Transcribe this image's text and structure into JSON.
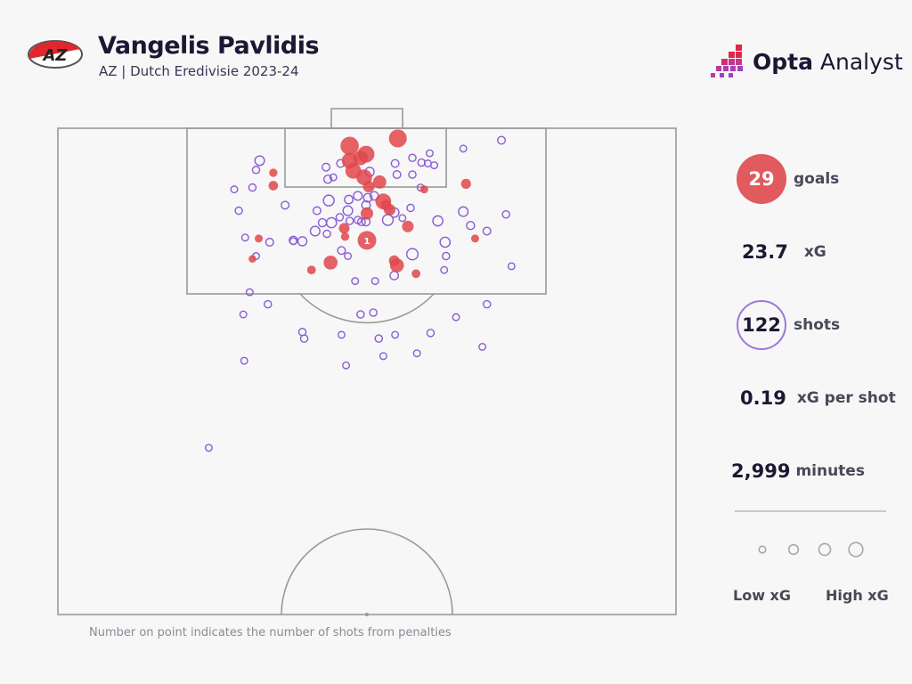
{
  "header": {
    "title": "Vangelis Pavlidis",
    "subtitle": "AZ | Dutch Eredivisie 2023-24",
    "club_logo_text": "AZ",
    "brand_bold": "Opta",
    "brand_light": " Analyst"
  },
  "stats": {
    "goals": "29",
    "goals_label": "goals",
    "xg": "23.7",
    "xg_label": "xG",
    "shots": "122",
    "shots_label": "shots",
    "xg_per_shot": "0.19",
    "xg_per_shot_label": "xG per shot",
    "minutes": "2,999",
    "minutes_label": "minutes"
  },
  "legend": {
    "low": "Low xG",
    "high": "High xG",
    "sizes_xg": [
      0.02,
      0.1,
      0.2,
      0.35
    ]
  },
  "footnote": "Number on point indicates the number of shots from penalties",
  "colors": {
    "goal": "#e0474c",
    "miss": "#8a5cd6",
    "pitch_line": "#9a9a9a",
    "text": "#1d1733"
  },
  "chart_data": {
    "type": "scatter",
    "title": "Vangelis Pavlidis shot map",
    "x_unit": "metres across pitch width (0-68)",
    "y_unit": "metres from goal line (0-52.5)",
    "xlim": [
      0,
      68
    ],
    "ylim": [
      0,
      52.5
    ],
    "fields": [
      "x",
      "y",
      "xg",
      "goal",
      "penalties"
    ],
    "goals": [
      [
        32.1,
        1.9,
        0.75
      ],
      [
        37.4,
        1.1,
        0.7
      ],
      [
        33.9,
        2.8,
        0.6
      ],
      [
        32.1,
        3.5,
        0.5
      ],
      [
        33.3,
        3.2,
        0.4
      ],
      [
        32.5,
        4.6,
        0.5
      ],
      [
        33.7,
        5.3,
        0.5
      ],
      [
        35.4,
        5.8,
        0.3
      ],
      [
        34.2,
        6.3,
        0.2
      ],
      [
        23.7,
        4.8,
        0.06
      ],
      [
        23.7,
        6.2,
        0.1
      ],
      [
        44.9,
        6.0,
        0.12
      ],
      [
        40.3,
        6.6,
        0.05
      ],
      [
        35.8,
        7.9,
        0.5
      ],
      [
        36.5,
        8.8,
        0.2
      ],
      [
        36.1,
        8.3,
        0.15
      ],
      [
        34.0,
        9.2,
        0.25
      ],
      [
        38.5,
        10.6,
        0.2
      ],
      [
        31.5,
        10.8,
        0.15
      ],
      [
        31.6,
        11.7,
        0.06
      ],
      [
        34.0,
        12.1,
        0.79,
        1
      ],
      [
        22.1,
        11.9,
        0.05
      ],
      [
        45.9,
        11.9,
        0.05
      ],
      [
        21.4,
        14.1,
        0.04
      ],
      [
        30.0,
        14.5,
        0.35
      ],
      [
        37.0,
        14.3,
        0.15
      ],
      [
        37.3,
        14.8,
        0.35
      ],
      [
        27.9,
        15.3,
        0.07
      ],
      [
        39.4,
        15.7,
        0.07
      ]
    ],
    "misses": [
      [
        22.2,
        3.5,
        0.1
      ],
      [
        21.8,
        4.5,
        0.03
      ],
      [
        19.4,
        6.6,
        0.02
      ],
      [
        21.4,
        6.4,
        0.03
      ],
      [
        19.9,
        8.9,
        0.03
      ],
      [
        25.0,
        8.3,
        0.04
      ],
      [
        20.6,
        11.8,
        0.02
      ],
      [
        23.3,
        12.3,
        0.04
      ],
      [
        25.9,
        12.1,
        0.05
      ],
      [
        26.9,
        12.2,
        0.08
      ],
      [
        21.8,
        13.8,
        0.02
      ],
      [
        21.1,
        17.7,
        0.02
      ],
      [
        23.1,
        19.0,
        0.03
      ],
      [
        20.4,
        20.1,
        0.02
      ],
      [
        20.5,
        25.1,
        0.02
      ],
      [
        26.9,
        22.0,
        0.03
      ],
      [
        27.1,
        22.7,
        0.03
      ],
      [
        31.2,
        22.3,
        0.02
      ],
      [
        31.7,
        25.6,
        0.02
      ],
      [
        33.3,
        20.1,
        0.03
      ],
      [
        34.7,
        19.9,
        0.03
      ],
      [
        35.3,
        22.7,
        0.03
      ],
      [
        35.8,
        24.6,
        0.02
      ],
      [
        37.1,
        22.3,
        0.02
      ],
      [
        39.5,
        24.3,
        0.02
      ],
      [
        41.0,
        22.1,
        0.03
      ],
      [
        43.8,
        20.4,
        0.02
      ],
      [
        46.7,
        23.6,
        0.02
      ],
      [
        47.2,
        19.0,
        0.03
      ],
      [
        49.9,
        14.9,
        0.02
      ],
      [
        49.3,
        9.3,
        0.03
      ],
      [
        47.2,
        11.1,
        0.04
      ],
      [
        45.4,
        10.5,
        0.05
      ],
      [
        44.6,
        9.0,
        0.1
      ],
      [
        42.6,
        12.3,
        0.12
      ],
      [
        41.8,
        10.0,
        0.12
      ],
      [
        42.7,
        13.8,
        0.03
      ],
      [
        42.5,
        15.3,
        0.02
      ],
      [
        39.0,
        13.6,
        0.18
      ],
      [
        37.0,
        15.9,
        0.06
      ],
      [
        34.9,
        16.5,
        0.02
      ],
      [
        32.7,
        16.5,
        0.02
      ],
      [
        31.2,
        13.2,
        0.04
      ],
      [
        31.9,
        13.8,
        0.02
      ],
      [
        29.6,
        11.4,
        0.03
      ],
      [
        28.3,
        11.1,
        0.1
      ],
      [
        29.1,
        10.2,
        0.05
      ],
      [
        30.1,
        10.2,
        0.12
      ],
      [
        28.5,
        8.9,
        0.04
      ],
      [
        29.8,
        7.8,
        0.15
      ],
      [
        32.0,
        7.7,
        0.06
      ],
      [
        33.0,
        7.3,
        0.07
      ],
      [
        34.1,
        7.5,
        0.06
      ],
      [
        33.9,
        8.3,
        0.06
      ],
      [
        31.9,
        8.9,
        0.1
      ],
      [
        31.0,
        9.6,
        0.03
      ],
      [
        32.1,
        10.0,
        0.03
      ],
      [
        33.0,
        9.9,
        0.03
      ],
      [
        33.4,
        10.1,
        0.04
      ],
      [
        33.9,
        10.1,
        0.05
      ],
      [
        36.3,
        9.9,
        0.15
      ],
      [
        37.0,
        9.1,
        0.1
      ],
      [
        37.9,
        9.7,
        0.02
      ],
      [
        38.8,
        8.6,
        0.03
      ],
      [
        34.8,
        7.3,
        0.06
      ],
      [
        29.5,
        4.2,
        0.04
      ],
      [
        29.7,
        5.5,
        0.05
      ],
      [
        30.3,
        5.3,
        0.02
      ],
      [
        31.1,
        3.8,
        0.04
      ],
      [
        34.3,
        4.7,
        0.08
      ],
      [
        37.1,
        3.8,
        0.04
      ],
      [
        37.3,
        5.0,
        0.04
      ],
      [
        39.0,
        3.2,
        0.03
      ],
      [
        39.0,
        5.0,
        0.03
      ],
      [
        40.0,
        3.7,
        0.03
      ],
      [
        40.9,
        2.7,
        0.02
      ],
      [
        40.7,
        3.8,
        0.02
      ],
      [
        41.4,
        4.0,
        0.02
      ],
      [
        44.6,
        2.2,
        0.02
      ],
      [
        48.8,
        1.3,
        0.04
      ],
      [
        39.9,
        6.4,
        0.02
      ],
      [
        16.6,
        34.5,
        0.02
      ],
      [
        25.9,
        12.2,
        0.02
      ]
    ]
  }
}
